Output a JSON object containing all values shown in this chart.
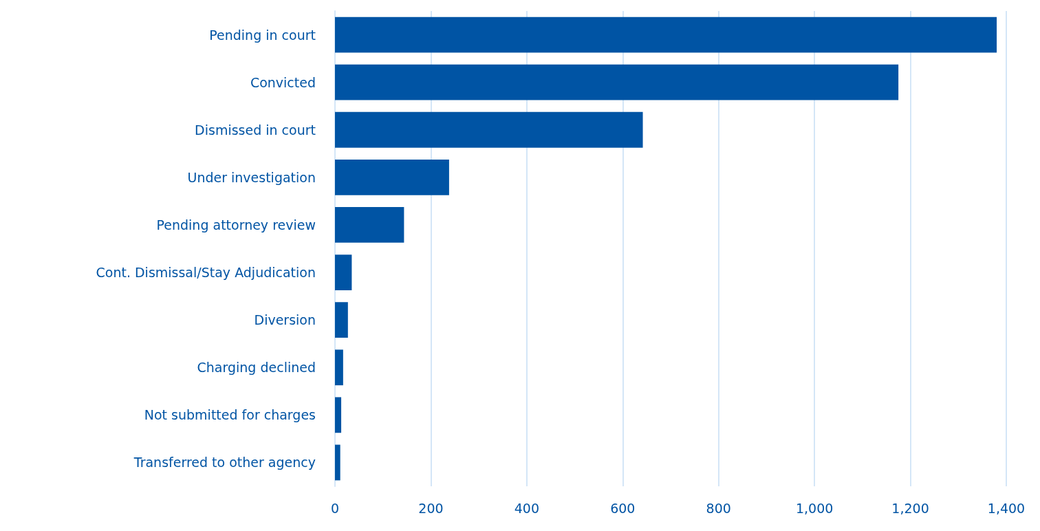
{
  "chart_data": {
    "type": "bar",
    "orientation": "horizontal",
    "categories": [
      "Pending in court",
      "Convicted",
      "Dismissed in court",
      "Under investigation",
      "Pending attorney review",
      "Cont. Dismissal/Stay Adjudication",
      "Diversion",
      "Charging declined",
      "Not submitted for charges",
      "Transferred to other agency"
    ],
    "values": [
      1380,
      1175,
      642,
      238,
      144,
      35,
      27,
      17,
      13,
      11
    ],
    "color": "#0054a4",
    "xlim": [
      0,
      1400
    ],
    "xticks": [
      0,
      200,
      400,
      600,
      800,
      {
        "value": 1000,
        "label": "1,000"
      },
      {
        "value": 1200,
        "label": "1,200"
      },
      {
        "value": 1400,
        "label": "1,400"
      }
    ],
    "grid": "x"
  }
}
